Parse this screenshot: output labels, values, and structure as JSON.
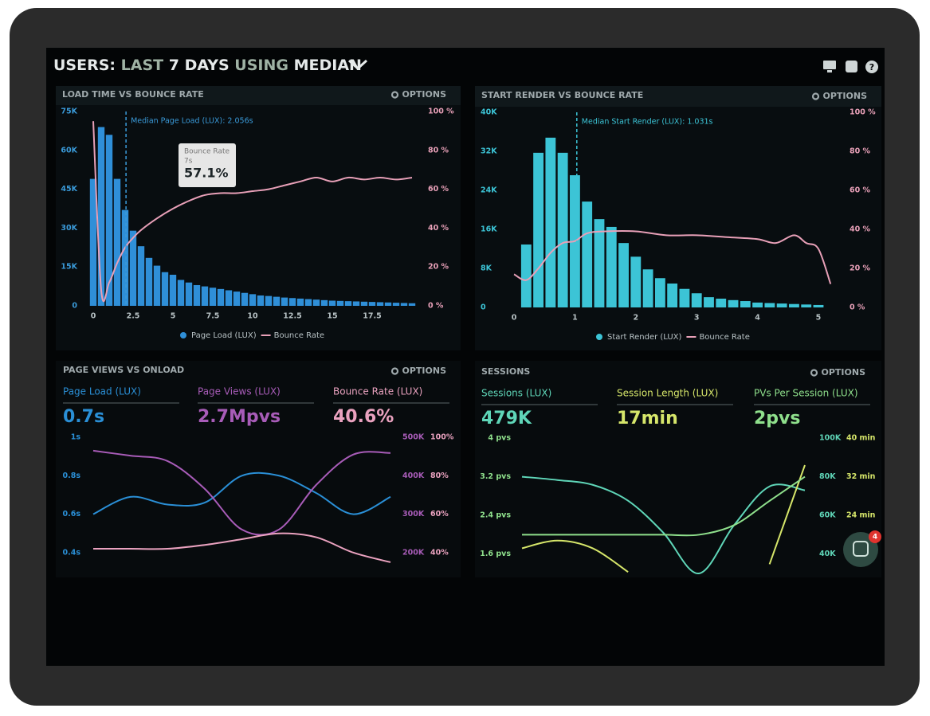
{
  "header": {
    "parts": [
      "USERS:",
      "LAST",
      "7 DAYS",
      "USING",
      "MEDIAN"
    ]
  },
  "chat_badge": 4,
  "chart_data": [
    {
      "type": "combo",
      "title": "LOAD TIME VS BOUNCE RATE",
      "options": "OPTIONS",
      "x": [
        0,
        0.5,
        1,
        1.5,
        2,
        2.5,
        3,
        3.5,
        4,
        4.5,
        5,
        5.5,
        6,
        6.5,
        7,
        7.5,
        8,
        8.5,
        9,
        9.5,
        10,
        10.5,
        11,
        11.5,
        12,
        12.5,
        13,
        13.5,
        14,
        14.5,
        15,
        15.5,
        16,
        16.5,
        17,
        17.5,
        18,
        18.5,
        19,
        19.5,
        20
      ],
      "series": [
        {
          "name": "Page Load (LUX)",
          "color": "#2f8fd8",
          "values": [
            49000,
            69000,
            66000,
            49000,
            37000,
            29000,
            23000,
            18500,
            15500,
            13000,
            12000,
            10000,
            9000,
            8000,
            7500,
            7000,
            6500,
            6000,
            5500,
            5000,
            4500,
            4000,
            3800,
            3500,
            3200,
            3000,
            2800,
            2600,
            2400,
            2200,
            2000,
            1900,
            1800,
            1700,
            1600,
            1500,
            1400,
            1300,
            1200,
            1100,
            1000
          ]
        },
        {
          "name": "Bounce Rate",
          "color": "#e8a0b8",
          "axis": "y2",
          "x": [
            0,
            0.5,
            1,
            1.5,
            2,
            2.5,
            3,
            4,
            5,
            6,
            7,
            8,
            9,
            10,
            11,
            12,
            13,
            14,
            15,
            16,
            17,
            18,
            19,
            20
          ],
          "values": [
            95,
            8,
            12,
            22,
            30,
            35,
            39,
            45,
            50,
            54,
            57,
            58,
            58,
            59,
            60,
            62,
            64,
            66,
            64,
            66,
            65,
            66,
            65,
            66
          ]
        }
      ],
      "xlim": [
        -0.5,
        20.5
      ],
      "xticks": [
        0,
        2.5,
        5,
        7.5,
        10,
        12.5,
        15,
        17.5
      ],
      "ylim": [
        0,
        75000
      ],
      "yticks": [
        0,
        {
          "value": 15000,
          "label": "15K"
        },
        {
          "value": 30000,
          "label": "30K"
        },
        {
          "value": 45000,
          "label": "45K"
        },
        {
          "value": 60000,
          "label": "60K"
        },
        {
          "value": 75000,
          "label": "75K"
        }
      ],
      "y2lim": [
        0,
        100
      ],
      "y2ticks": [
        {
          "value": 0,
          "label": "0 %"
        },
        {
          "value": 20,
          "label": "20 %"
        },
        {
          "value": 40,
          "label": "40 %"
        },
        {
          "value": 60,
          "label": "60 %"
        },
        {
          "value": 80,
          "label": "80 %"
        },
        {
          "value": 100,
          "label": "100 %"
        }
      ],
      "annotation": {
        "text": "Median Page Load (LUX): 2.056s",
        "x": 2.056
      },
      "tooltip": [
        "Bounce Rate",
        "7s",
        "57.1%"
      ]
    },
    {
      "type": "combo",
      "title": "START RENDER VS BOUNCE RATE",
      "options": "OPTIONS",
      "x": [
        0.2,
        0.4,
        0.6,
        0.8,
        1,
        1.2,
        1.4,
        1.6,
        1.8,
        2,
        2.2,
        2.4,
        2.6,
        2.8,
        3,
        3.2,
        3.4,
        3.6,
        3.8,
        4,
        4.2,
        4.4,
        4.6,
        4.8,
        5
      ],
      "series": [
        {
          "name": "Start Render (LUX)",
          "color": "#3cc4d6",
          "values": [
            12900,
            31700,
            34800,
            31700,
            27100,
            21700,
            18100,
            16500,
            13200,
            10400,
            7800,
            6000,
            4900,
            3800,
            2900,
            2100,
            1800,
            1500,
            1300,
            1000,
            900,
            800,
            700,
            600,
            500
          ]
        },
        {
          "name": "Bounce Rate",
          "color": "#e8a0b8",
          "axis": "y2",
          "x": [
            0,
            0.2,
            0.4,
            0.6,
            0.8,
            1,
            1.2,
            1.5,
            2,
            2.5,
            3,
            3.5,
            4,
            4.3,
            4.6,
            4.8,
            5,
            5.2
          ],
          "values": [
            17,
            14,
            20,
            28,
            33,
            34,
            38,
            39,
            39,
            37,
            37,
            36,
            35,
            33,
            37,
            33,
            30,
            12
          ]
        }
      ],
      "xlim": [
        -0.1,
        5.3
      ],
      "xticks": [
        0,
        1,
        2,
        3,
        4,
        5
      ],
      "ylim": [
        0,
        40000
      ],
      "yticks": [
        0,
        {
          "value": 8000,
          "label": "8K"
        },
        {
          "value": 16000,
          "label": "16K"
        },
        {
          "value": 24000,
          "label": "24K"
        },
        {
          "value": 32000,
          "label": "32K"
        },
        {
          "value": 40000,
          "label": "40K"
        }
      ],
      "y2lim": [
        0,
        100
      ],
      "y2ticks": [
        {
          "value": 0,
          "label": "0 %"
        },
        {
          "value": 20,
          "label": "20 %"
        },
        {
          "value": 40,
          "label": "40 %"
        },
        {
          "value": 60,
          "label": "60 %"
        },
        {
          "value": 80,
          "label": "80 %"
        },
        {
          "value": 100,
          "label": "100 %"
        }
      ],
      "annotation": {
        "text": "Median Start Render (LUX): 1.031s",
        "x": 1.031
      }
    },
    {
      "type": "line",
      "title": "PAGE VIEWS VS ONLOAD",
      "options": "OPTIONS",
      "series": [
        {
          "name": "Page Load (LUX)",
          "kpi": "0.7s",
          "color": "#2a8fd6",
          "values": [
            0.6,
            0.69,
            0.65,
            0.66,
            0.8,
            0.8,
            0.71,
            0.6,
            0.69
          ]
        },
        {
          "name": "Page Views (LUX)",
          "kpi": "2.7Mpvs",
          "color": "#a85cb8",
          "axis": "y2",
          "values": [
            465000,
            452000,
            438000,
            366000,
            260000,
            260000,
            376000,
            455000,
            459000
          ]
        },
        {
          "name": "Bounce Rate (LUX)",
          "kpi": "40.6%",
          "color": "#eaa2bf",
          "axis": "y3",
          "values": [
            42,
            42,
            42,
            44,
            47,
            50,
            48,
            40,
            35
          ]
        }
      ],
      "ylim": [
        0.3,
        1
      ],
      "yticks": [
        {
          "value": 0.4,
          "label": "0.4s"
        },
        {
          "value": 0.6,
          "label": "0.6s"
        },
        {
          "value": 0.8,
          "label": "0.8s"
        },
        {
          "value": 1,
          "label": "1s"
        }
      ],
      "y2lim": [
        150000,
        500000
      ],
      "y2ticks": [
        {
          "value": 200000,
          "label": "200K"
        },
        {
          "value": 300000,
          "label": "300K"
        },
        {
          "value": 400000,
          "label": "400K"
        },
        {
          "value": 500000,
          "label": "500K"
        }
      ],
      "y3lim": [
        30,
        100
      ],
      "y3ticks": [
        {
          "value": 40,
          "label": "40%"
        },
        {
          "value": 60,
          "label": "60%"
        },
        {
          "value": 80,
          "label": "80%"
        },
        {
          "value": 100,
          "label": "100%"
        }
      ]
    },
    {
      "type": "line",
      "title": "SESSIONS",
      "options": "OPTIONS",
      "series": [
        {
          "name": "Sessions (LUX)",
          "kpi": "479K",
          "color": "#5fd6b8",
          "axis": "y2",
          "values": [
            80000,
            78300,
            75800,
            67600,
            51000,
            30000,
            55000,
            75000,
            73000
          ]
        },
        {
          "name": "Session Length (LUX)",
          "kpi": "17min",
          "color": "#d6e66a",
          "axis": "y3",
          "values": [
            17.2,
            18.8,
            17.2,
            12.3,
            null,
            null,
            null,
            13.9,
            34.4
          ]
        },
        {
          "name": "PVs Per Session (LUX)",
          "kpi": "2pvs",
          "color": "#8fe08c",
          "values": [
            2,
            2,
            2,
            2,
            2,
            2,
            2.2,
            2.7,
            3.2
          ]
        }
      ],
      "ylim": [
        1.2,
        4
      ],
      "yticks": [
        {
          "value": 1.6,
          "label": "1.6 pvs"
        },
        {
          "value": 2.4,
          "label": "2.4 pvs"
        },
        {
          "value": 3.2,
          "label": "3.2 pvs"
        },
        {
          "value": 4,
          "label": "4 pvs"
        }
      ],
      "y2lim": [
        30000,
        100000
      ],
      "y2ticks": [
        {
          "value": 40000,
          "label": "40K"
        },
        {
          "value": 60000,
          "label": "60K"
        },
        {
          "value": 80000,
          "label": "80K"
        },
        {
          "value": 100000,
          "label": "100K"
        }
      ],
      "y3lim": [
        12,
        40
      ],
      "y3ticks": [
        {
          "value": 24,
          "label": "24 min"
        },
        {
          "value": 32,
          "label": "32 min"
        },
        {
          "value": 40,
          "label": "40 min"
        }
      ]
    }
  ]
}
